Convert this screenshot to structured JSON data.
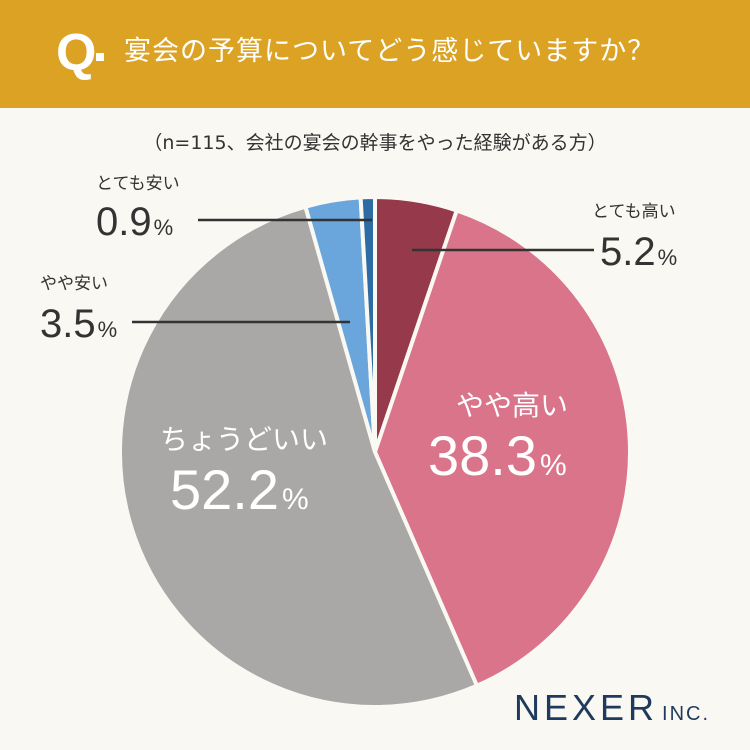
{
  "header": {
    "q_mark": "Q",
    "question": "宴会の予算についてどう感じていますか？"
  },
  "subtitle": "（n=115、会社の宴会の幹事をやった経験がある方）",
  "chart_data": {
    "type": "pie",
    "start": "12 o'clock",
    "direction": "clockwise",
    "slices": [
      {
        "label": "とても高い",
        "value": 5.2,
        "unit": "%",
        "color": "#96394a"
      },
      {
        "label": "やや高い",
        "value": 38.3,
        "unit": "%",
        "color": "#d9748a"
      },
      {
        "label": "ちょうどいい",
        "value": 52.2,
        "unit": "%",
        "color": "#a9a8a6"
      },
      {
        "label": "やや安い",
        "value": 3.5,
        "unit": "%",
        "color": "#6aa6dc"
      },
      {
        "label": "とても安い",
        "value": 0.9,
        "unit": "%",
        "color": "#2c6ba3"
      }
    ]
  },
  "labels": {
    "very_high": {
      "name": "とても高い",
      "value": "5.2",
      "pct": "%"
    },
    "high": {
      "name": "やや高い",
      "value": "38.3",
      "pct": "%"
    },
    "just_right": {
      "name": "ちょうどいい",
      "value": "52.2",
      "pct": "%"
    },
    "low": {
      "name": "やや安い",
      "value": "3.5",
      "pct": "%"
    },
    "very_low": {
      "name": "とても安い",
      "value": "0.9",
      "pct": "%"
    }
  },
  "logo": {
    "main": "NEXER",
    "suffix": "INC."
  },
  "colors": {
    "header": "#dba223",
    "background": "#faf8f2",
    "logo": "#1f3a5c"
  }
}
